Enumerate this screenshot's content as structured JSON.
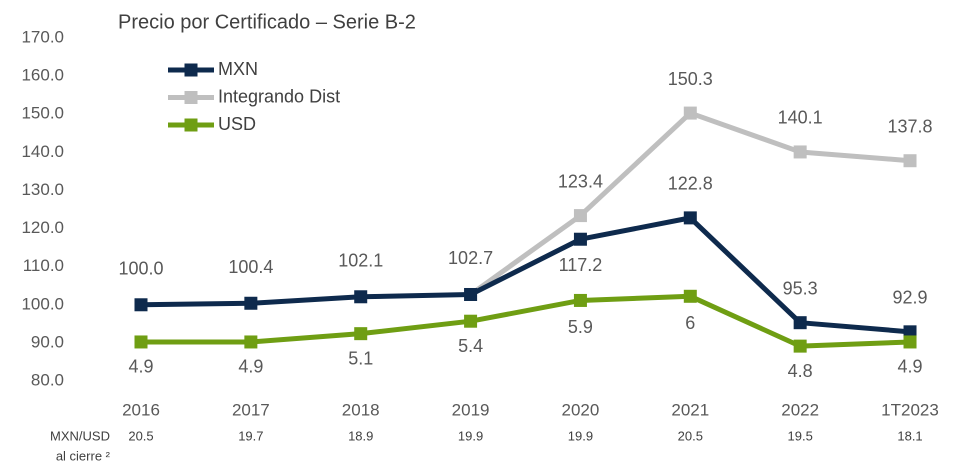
{
  "chart_data": {
    "type": "line",
    "title": "Precio por Certificado – Serie B-2",
    "categories": [
      "2016",
      "2017",
      "2018",
      "2019",
      "2020",
      "2021",
      "2022",
      "1T2023"
    ],
    "series": [
      {
        "name": "MXN",
        "color": "#0e2a4d",
        "values": [
          100.0,
          100.4,
          102.1,
          102.7,
          117.2,
          122.8,
          95.3,
          92.9
        ],
        "value_labels": [
          "100.0",
          "100.4",
          "102.1",
          "102.7",
          "117.2",
          "122.8",
          "95.3",
          "92.9"
        ]
      },
      {
        "name": "Integrando Dist",
        "color": "#bfbfbf",
        "values": [
          null,
          null,
          null,
          102.7,
          123.4,
          150.3,
          140.1,
          137.8
        ],
        "value_labels": [
          null,
          null,
          null,
          null,
          "123.4",
          "150.3",
          "140.1",
          "137.8"
        ]
      },
      {
        "name": "USD",
        "color": "#6f9e13",
        "axis": "y2",
        "values": [
          4.9,
          4.9,
          5.1,
          5.4,
          5.9,
          6.0,
          4.8,
          4.9
        ]
      }
    ],
    "ylim": [
      80,
      170
    ],
    "yticks": [
      {
        "value": 80,
        "label": "80.0"
      },
      {
        "value": 90,
        "label": "90.0"
      },
      {
        "value": 100,
        "label": "100.0"
      },
      {
        "value": 110,
        "label": "110.0"
      },
      {
        "value": 120,
        "label": "120.0"
      },
      {
        "value": 130,
        "label": "130.0"
      },
      {
        "value": 140,
        "label": "140.0"
      },
      {
        "value": 150,
        "label": "150.0"
      },
      {
        "value": 160,
        "label": "160.0"
      },
      {
        "value": 170,
        "label": "170.0"
      }
    ],
    "y2lim": [
      3.96,
      12.22
    ],
    "legend": "top-left",
    "fx_row": {
      "label": "MXN/USD",
      "sublabel": "al cierre ²",
      "values": [
        20.5,
        19.7,
        18.9,
        19.9,
        19.9,
        20.5,
        19.5,
        18.1
      ]
    }
  }
}
